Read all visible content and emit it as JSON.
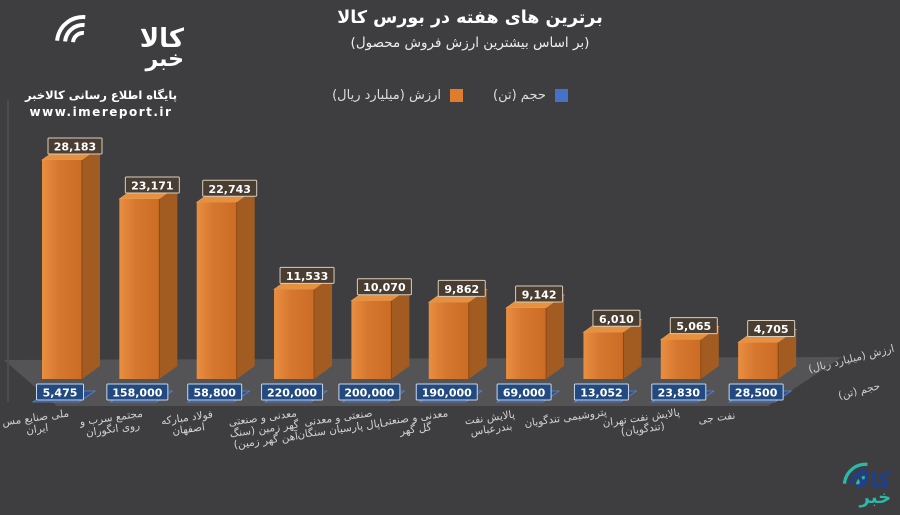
{
  "branding": {
    "logo_word_top": "کالا",
    "logo_word_bottom": "خبر",
    "tagline": "پایگاه اطلاع رسانی کالاخبر",
    "website": "www.imereport.ir"
  },
  "header": {
    "title": "برترین های هفته در بورس کالا",
    "subtitle": "(بر اساس بیشترین ارزش فروش محصول)"
  },
  "legend": {
    "value": {
      "label": "ارزش (میلیارد ریال)",
      "color": "#e07c2c"
    },
    "volume": {
      "label": "حجم (تن)",
      "color": "#4472c4"
    }
  },
  "chart_data": {
    "type": "bar",
    "projection": "3d",
    "title": "برترین های هفته در بورس کالا",
    "subtitle": "(بر اساس بیشترین ارزش فروش محصول)",
    "categories": [
      "ملی صنایع مس ایران",
      "مجتمع سرب و روی انگوران",
      "فولاد مبارکه اصفهان",
      "معدنی و صنعتی گهر زمین (سنگ آهن گهر زمین)",
      "صنعتی و معدنی اپال پارسیان سنگان",
      "معدنی و صنعتی گل گهر",
      "پالایش نفت بندرعباس",
      "پتروشیمی تندگویان",
      "پالایش نفت تهران (تندگویان)",
      "نفت جی"
    ],
    "category_lines": [
      [
        "ملی صنایع مس",
        "ایران"
      ],
      [
        "مجتمع سرب و",
        "روی انگوران"
      ],
      [
        "فولاد مبارکه",
        "اصفهان"
      ],
      [
        "معدنی و صنعتی",
        "گهر زمین (سنگ",
        "آهن گهر زمین)"
      ],
      [
        "صنعتی و معدنی",
        "اپال پارسیان سنگان"
      ],
      [
        "معدنی و صنعتی",
        "گل گهر"
      ],
      [
        "پالایش نفت",
        "بندرعباس"
      ],
      [
        "پتروشیمی تندگویان"
      ],
      [
        "پالایش نفت تهران",
        "(تندگویان)"
      ],
      [
        "نفت جی"
      ]
    ],
    "series": [
      {
        "name": "ارزش (میلیارد ریال)",
        "color": "#d87a33",
        "values": [
          28183,
          23171,
          22743,
          11533,
          10070,
          9862,
          9142,
          6010,
          5065,
          4705
        ]
      },
      {
        "name": "حجم (تن)",
        "color": "#2e5394",
        "values": [
          5475,
          158000,
          58800,
          220000,
          200000,
          190000,
          69000,
          13052,
          23830,
          28500
        ]
      }
    ],
    "depth_axis_labels": [
      "ارزش (میلیارد ریال)",
      "حجم (تن)"
    ],
    "data_labels": true,
    "value_axis_range": [
      0,
      28183
    ],
    "legend_position": "top"
  },
  "colors": {
    "background": "#3e3e40",
    "floor": "#545457",
    "bar_front_light": "#e98e41",
    "bar_front_mid": "#d77830",
    "bar_front_dark": "#cb6c25",
    "bar_top": "#e6913f",
    "bar_side": "#a25b20",
    "value_label_bg": "#4a3e33",
    "value_label_border": "#d8cdbd",
    "volume_label_bg": "#234a80",
    "volume_label_border": "#c9d6ec",
    "volume_bar": "#2e5394",
    "footer_navy": "#1e3f8e",
    "footer_teal": "#2cb9aa",
    "category_text": "#d2d2d2"
  }
}
